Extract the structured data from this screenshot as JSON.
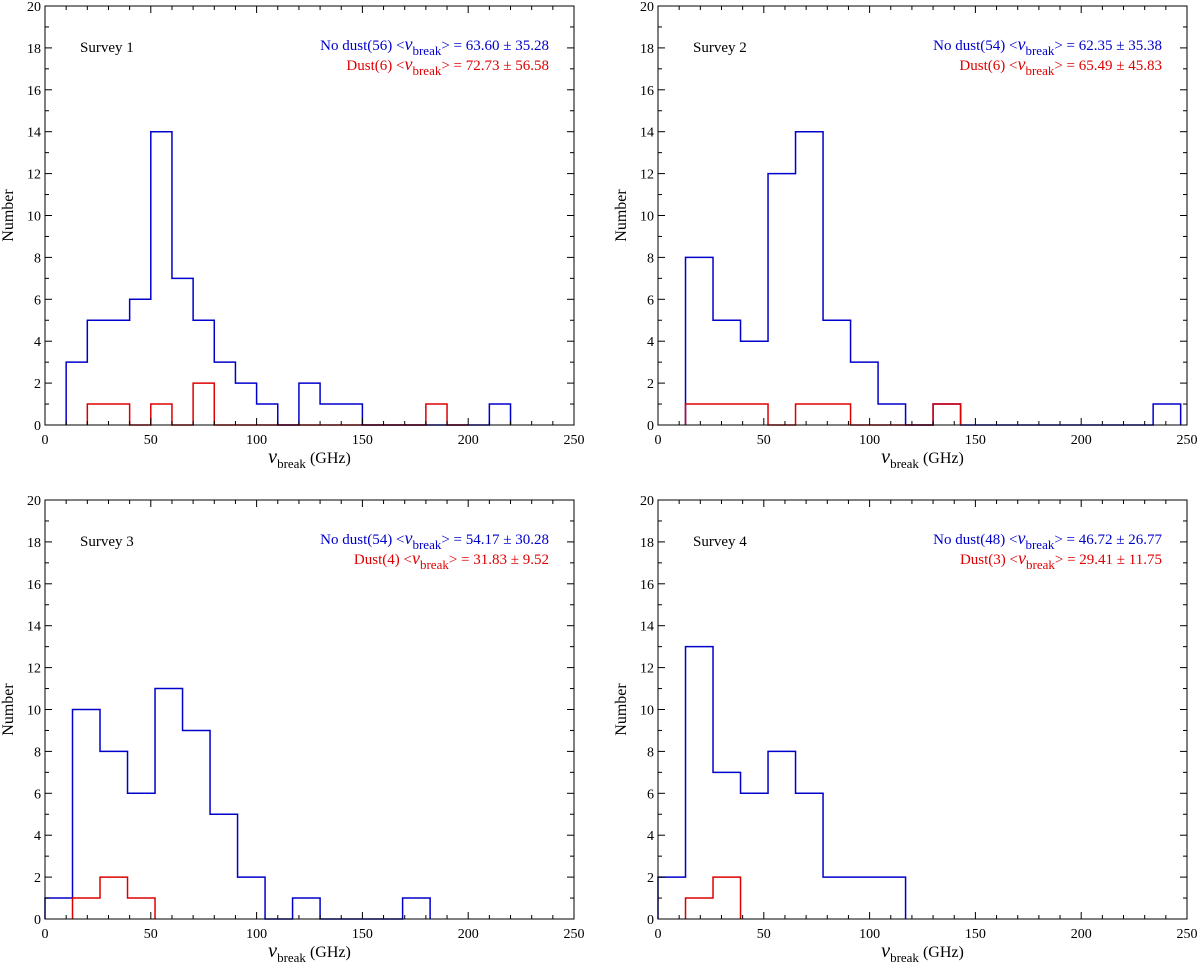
{
  "chart_data": [
    {
      "type": "histogram",
      "title": "Survey 1",
      "xlabel_symbol": "ν",
      "xlabel_sub": "break",
      "xlabel_unit": "(GHz)",
      "ylabel": "Number",
      "xlim": [
        0,
        250
      ],
      "ylim": [
        0,
        20
      ],
      "xticks": [
        0,
        50,
        100,
        150,
        200,
        250
      ],
      "yticks": [
        0,
        2,
        4,
        6,
        8,
        10,
        12,
        14,
        16,
        18,
        20
      ],
      "series": [
        {
          "name": "No dust",
          "color": "#0000cc",
          "legend": {
            "prefix": "No dust(56) <",
            "sym": "ν",
            "sub": "break",
            "suffix": "> = 63.60 ± 35.28"
          },
          "x0": 10,
          "bin_width": 10,
          "counts": [
            3,
            5,
            5,
            6,
            14,
            7,
            5,
            3,
            2,
            1,
            0,
            2,
            1,
            1,
            0,
            0,
            0,
            0,
            0,
            0,
            1
          ]
        },
        {
          "name": "Dust",
          "color": "#dd0000",
          "legend": {
            "prefix": "Dust(6) <",
            "sym": "ν",
            "sub": "break",
            "suffix": "> = 72.73 ± 56.58"
          },
          "x0": 20,
          "bin_width": 10,
          "counts": [
            1,
            1,
            0,
            1,
            0,
            2,
            0,
            0,
            0,
            0,
            0,
            0,
            0,
            0,
            0,
            0,
            1,
            0
          ]
        }
      ]
    },
    {
      "type": "histogram",
      "title": "Survey 2",
      "xlabel_symbol": "ν",
      "xlabel_sub": "break",
      "xlabel_unit": "(GHz)",
      "ylabel": "Number",
      "xlim": [
        0,
        250
      ],
      "ylim": [
        0,
        20
      ],
      "xticks": [
        0,
        50,
        100,
        150,
        200,
        250
      ],
      "yticks": [
        0,
        2,
        4,
        6,
        8,
        10,
        12,
        14,
        16,
        18,
        20
      ],
      "series": [
        {
          "name": "No dust",
          "color": "#0000cc",
          "legend": {
            "prefix": "No dust(54) <",
            "sym": "ν",
            "sub": "break",
            "suffix": "> = 62.35 ± 35.38"
          },
          "x0": 13,
          "bin_width": 13,
          "counts": [
            8,
            5,
            4,
            12,
            14,
            5,
            3,
            1,
            0,
            1,
            0,
            0,
            0,
            0,
            0,
            0,
            0,
            1
          ]
        },
        {
          "name": "Dust",
          "color": "#dd0000",
          "legend": {
            "prefix": "Dust(6) <",
            "sym": "ν",
            "sub": "break",
            "suffix": "> = 65.49 ± 45.83"
          },
          "x0": 13,
          "bin_width": 13,
          "counts": [
            1,
            1,
            1,
            0,
            1,
            1,
            0,
            0,
            0,
            1
          ]
        }
      ]
    },
    {
      "type": "histogram",
      "title": "Survey 3",
      "xlabel_symbol": "ν",
      "xlabel_sub": "break",
      "xlabel_unit": "(GHz)",
      "ylabel": "Number",
      "xlim": [
        0,
        250
      ],
      "ylim": [
        0,
        20
      ],
      "xticks": [
        0,
        50,
        100,
        150,
        200,
        250
      ],
      "yticks": [
        0,
        2,
        4,
        6,
        8,
        10,
        12,
        14,
        16,
        18,
        20
      ],
      "series": [
        {
          "name": "No dust",
          "color": "#0000cc",
          "legend": {
            "prefix": "No dust(54) <",
            "sym": "ν",
            "sub": "break",
            "suffix": "> = 54.17 ± 30.28"
          },
          "x0": 0,
          "bin_width": 13,
          "counts": [
            1,
            10,
            8,
            6,
            11,
            9,
            5,
            2,
            0,
            1,
            0,
            0,
            0,
            1
          ]
        },
        {
          "name": "Dust",
          "color": "#dd0000",
          "legend": {
            "prefix": "Dust(4) <",
            "sym": "ν",
            "sub": "break",
            "suffix": "> = 31.83 ± 9.52"
          },
          "x0": 13,
          "bin_width": 13,
          "counts": [
            1,
            2,
            1
          ]
        }
      ]
    },
    {
      "type": "histogram",
      "title": "Survey 4",
      "xlabel_symbol": "ν",
      "xlabel_sub": "break",
      "xlabel_unit": "(GHz)",
      "ylabel": "Number",
      "xlim": [
        0,
        250
      ],
      "ylim": [
        0,
        20
      ],
      "xticks": [
        0,
        50,
        100,
        150,
        200,
        250
      ],
      "yticks": [
        0,
        2,
        4,
        6,
        8,
        10,
        12,
        14,
        16,
        18,
        20
      ],
      "series": [
        {
          "name": "No dust",
          "color": "#0000cc",
          "legend": {
            "prefix": "No dust(48) <",
            "sym": "ν",
            "sub": "break",
            "suffix": "> = 46.72 ± 26.77"
          },
          "x0": 0,
          "bin_width": 13,
          "counts": [
            2,
            13,
            7,
            6,
            8,
            6,
            2,
            2,
            2
          ]
        },
        {
          "name": "Dust",
          "color": "#dd0000",
          "legend": {
            "prefix": "Dust(3) <",
            "sym": "ν",
            "sub": "break",
            "suffix": "> = 29.41 ± 11.75"
          },
          "x0": 13,
          "bin_width": 13,
          "counts": [
            1,
            2
          ]
        }
      ]
    }
  ]
}
